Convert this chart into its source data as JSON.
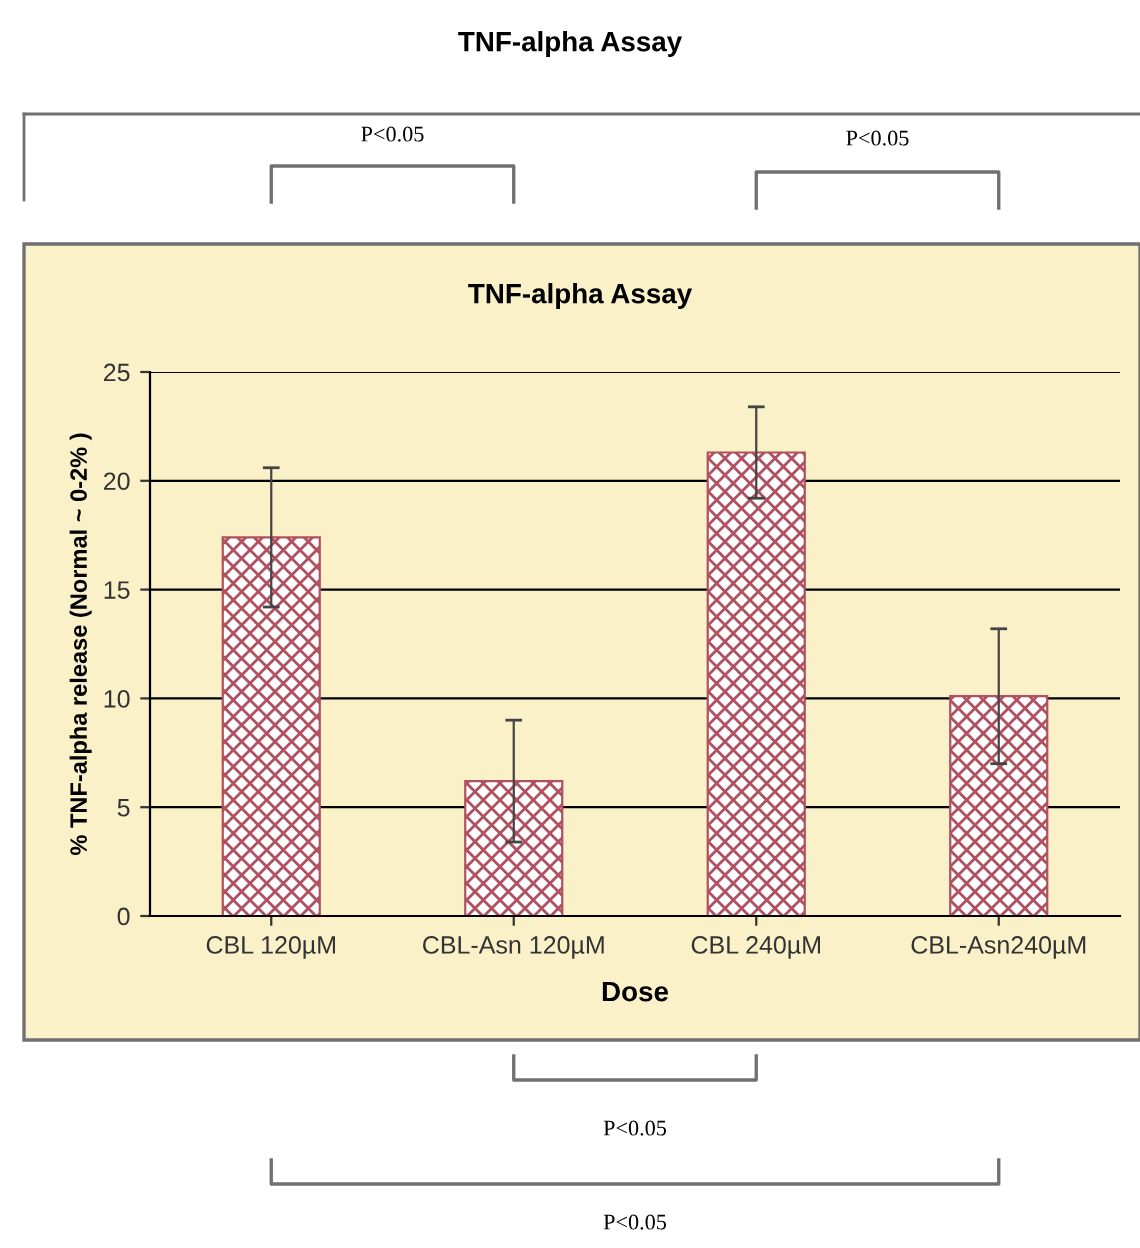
{
  "chart_data": {
    "type": "bar",
    "title": "TNF-alpha Assay",
    "subtitle": "TNF-alpha Assay",
    "xlabel": "Dose",
    "ylabel": "% TNF-alpha release (Normal ~ 0-2% )",
    "categories": [
      "CBL 120µM",
      "CBL-Asn 120µM",
      "CBL 240µM",
      "CBL-Asn240µM"
    ],
    "values": [
      17.4,
      6.2,
      21.3,
      10.1
    ],
    "errors": [
      3.2,
      2.8,
      2.1,
      3.1
    ],
    "color": "#b05060",
    "ylim": [
      0,
      25
    ],
    "yticks": [
      0,
      5,
      10,
      15,
      20,
      25
    ],
    "grid": "y",
    "legend": false,
    "annotations": [
      "P<0.05",
      "P<0.05",
      "P<0.05",
      "P<0.05"
    ]
  }
}
